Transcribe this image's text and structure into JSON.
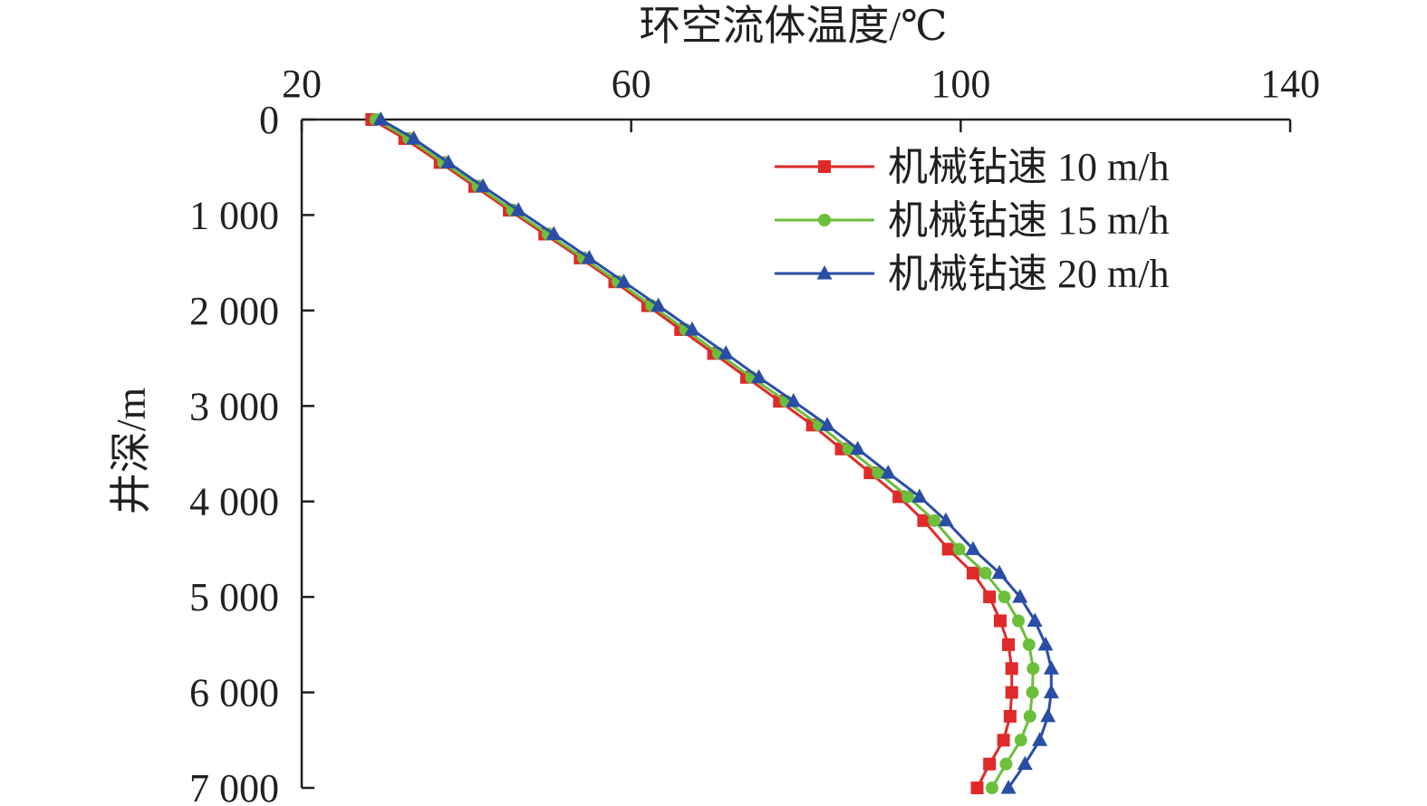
{
  "chart_data": {
    "type": "line",
    "title": "",
    "xlabel": "环空流体温度/℃",
    "ylabel": "井深/m",
    "x_axis_position": "top",
    "y_axis_inverted": true,
    "xlim": [
      20,
      140
    ],
    "ylim": [
      0,
      7000
    ],
    "x_ticks": [
      20,
      60,
      100,
      140
    ],
    "x_tick_labels": [
      "20",
      "60",
      "100",
      "140"
    ],
    "y_ticks": [
      0,
      1000,
      2000,
      3000,
      4000,
      5000,
      6000,
      7000
    ],
    "y_tick_labels": [
      "0",
      "1 000",
      "2 000",
      "3 000",
      "4 000",
      "5 000",
      "6 000",
      "7 000"
    ],
    "grid": false,
    "legend_position": "top-right",
    "series": [
      {
        "name": "机械钻速 10 m/h",
        "color": "#e02a2a",
        "marker": "square",
        "points": [
          [
            28.5,
            0
          ],
          [
            32.5,
            200
          ],
          [
            36.8,
            450
          ],
          [
            41.0,
            700
          ],
          [
            45.2,
            950
          ],
          [
            49.5,
            1200
          ],
          [
            53.8,
            1450
          ],
          [
            58.0,
            1700
          ],
          [
            62.0,
            1950
          ],
          [
            66.0,
            2200
          ],
          [
            70.0,
            2450
          ],
          [
            74.0,
            2700
          ],
          [
            78.0,
            2950
          ],
          [
            82.0,
            3200
          ],
          [
            85.5,
            3450
          ],
          [
            89.0,
            3700
          ],
          [
            92.5,
            3950
          ],
          [
            95.5,
            4200
          ],
          [
            98.5,
            4500
          ],
          [
            101.5,
            4750
          ],
          [
            103.5,
            5000
          ],
          [
            104.8,
            5250
          ],
          [
            105.8,
            5500
          ],
          [
            106.2,
            5750
          ],
          [
            106.2,
            6000
          ],
          [
            106.0,
            6250
          ],
          [
            105.2,
            6500
          ],
          [
            103.5,
            6750
          ],
          [
            102.0,
            7000
          ]
        ]
      },
      {
        "name": "机械钻速 15 m/h",
        "color": "#6cbf3b",
        "marker": "circle",
        "points": [
          [
            29.0,
            0
          ],
          [
            33.0,
            200
          ],
          [
            37.2,
            450
          ],
          [
            41.4,
            700
          ],
          [
            45.6,
            950
          ],
          [
            49.9,
            1200
          ],
          [
            54.2,
            1450
          ],
          [
            58.4,
            1700
          ],
          [
            62.5,
            1950
          ],
          [
            66.6,
            2200
          ],
          [
            70.6,
            2450
          ],
          [
            74.6,
            2700
          ],
          [
            78.8,
            2950
          ],
          [
            82.8,
            3200
          ],
          [
            86.4,
            3450
          ],
          [
            90.0,
            3700
          ],
          [
            93.6,
            3950
          ],
          [
            96.8,
            4200
          ],
          [
            99.8,
            4500
          ],
          [
            103.0,
            4750
          ],
          [
            105.3,
            5000
          ],
          [
            107.0,
            5250
          ],
          [
            108.3,
            5500
          ],
          [
            108.8,
            5750
          ],
          [
            108.7,
            6000
          ],
          [
            108.4,
            6250
          ],
          [
            107.3,
            6500
          ],
          [
            105.5,
            6750
          ],
          [
            103.8,
            7000
          ]
        ]
      },
      {
        "name": "机械钻速 20 m/h",
        "color": "#2a4ea6",
        "marker": "triangle",
        "points": [
          [
            29.6,
            0
          ],
          [
            33.6,
            200
          ],
          [
            37.8,
            450
          ],
          [
            42.0,
            700
          ],
          [
            46.3,
            950
          ],
          [
            50.6,
            1200
          ],
          [
            54.9,
            1450
          ],
          [
            59.1,
            1700
          ],
          [
            63.3,
            1950
          ],
          [
            67.4,
            2200
          ],
          [
            71.5,
            2450
          ],
          [
            75.5,
            2700
          ],
          [
            79.7,
            2950
          ],
          [
            83.8,
            3200
          ],
          [
            87.5,
            3450
          ],
          [
            91.2,
            3700
          ],
          [
            95.0,
            3950
          ],
          [
            98.2,
            4200
          ],
          [
            101.5,
            4500
          ],
          [
            104.7,
            4750
          ],
          [
            107.2,
            5000
          ],
          [
            109.0,
            5250
          ],
          [
            110.3,
            5500
          ],
          [
            111.0,
            5750
          ],
          [
            111.0,
            6000
          ],
          [
            110.6,
            6250
          ],
          [
            109.6,
            6500
          ],
          [
            107.8,
            6750
          ],
          [
            105.8,
            7000
          ]
        ]
      }
    ]
  }
}
